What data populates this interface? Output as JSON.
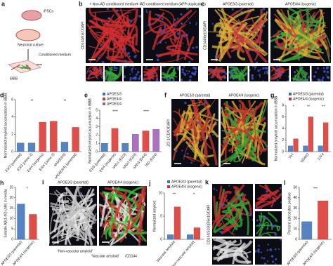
{
  "panels": {
    "a": {
      "label": "a",
      "texts": [
        "iPSCs",
        "Neuronal culture",
        "Conditioned medium",
        "iBBB"
      ]
    },
    "b": {
      "label": "b",
      "images": [
        "+ Non-AD conditioned medium",
        "+ fAD conditioned medium (APP duplication)"
      ],
      "stain": "CD144/Ki67/DAPI"
    },
    "c": {
      "label": "c",
      "images": [
        "APOE3/3 (parental)",
        "APOE4/4 (isogenic)"
      ],
      "stain": "CD144/6e10/DAPI"
    },
    "d": {
      "label": "d",
      "type": "bar",
      "ylabel": "Normalized amyloid accumulation in iBBB",
      "categories": [
        "E3/3 (parental)",
        "E3/3 (clone 2)",
        "E4/4 (isogenic)",
        "E4/4 (clone 2)",
        "sAD(E3/4)",
        "sAD(E4/4) (parental)"
      ],
      "values": [
        1,
        1,
        3.4,
        3.5,
        1.1,
        2.8
      ],
      "colors": [
        "#3a6fb5",
        "#3a6fb5",
        "#d7302a",
        "#d7302a",
        "#3a6fb5",
        "#d7302a"
      ],
      "ylim": [
        0,
        6
      ],
      "yticks": [
        0,
        2,
        4,
        6
      ],
      "significance": [
        "**",
        "**"
      ]
    },
    "e": {
      "label": "e",
      "type": "bar",
      "ylabel": "Normalized amyloid accumulation in iBBB",
      "categories": [
        "E3/3 (parental)",
        "E4/4 (isogenic)",
        "sAD1 (E3/3)",
        "sAD2 (E3/4)",
        "sAD3 (E4/4)",
        "fAD (E3/4)"
      ],
      "values": [
        1,
        2.8,
        1,
        2.1,
        2.5,
        2.7
      ],
      "colors": [
        "#3a6fb5",
        "#d7302a",
        "#3a6fb5",
        "#9b59b6",
        "#d7302a",
        "#9b59b6"
      ],
      "legend": [
        {
          "name": "APOE3/3",
          "color": "#3a6fb5"
        },
        {
          "name": "APOE4/4",
          "color": "#d7302a"
        },
        {
          "name": "APOE3/4",
          "color": "#9b59b6"
        }
      ],
      "ylim": [
        0,
        5
      ],
      "yticks": [
        0,
        1,
        2,
        3,
        4,
        5
      ],
      "significance": [
        "****",
        "****"
      ]
    },
    "f": {
      "label": "f",
      "images": [
        "APOE3/3 (parental)",
        "APOE4/4 (isogenic)"
      ],
      "stain": "ZO-1/CD40/DAPI"
    },
    "g": {
      "label": "g",
      "type": "bar",
      "ylabel": "Normalized amyloid accumulation in iBBB",
      "categories": [
        "ThT",
        "D54D2",
        "12F4"
      ],
      "series": [
        {
          "name": "APOE3/3 (parental)",
          "color": "#3a6fb5",
          "values": [
            1,
            1,
            1
          ]
        },
        {
          "name": "APOE4/4 (isogenic)",
          "color": "#d7302a",
          "values": [
            2.2,
            6,
            5
          ]
        }
      ],
      "ylim": [
        0,
        8
      ],
      "yticks": [
        0,
        2,
        4,
        6,
        8
      ],
      "significance": [
        "*",
        "**",
        "**"
      ]
    },
    "h": {
      "label": "h",
      "type": "bar",
      "ylabel": "Soluble Aβ(1-40) (nM) in media",
      "categories": [
        "APOE3/3 (parental)",
        "APOE4/4 (isogenic)"
      ],
      "values": [
        17,
        12
      ],
      "colors": [
        "#3a6fb5",
        "#d7302a"
      ],
      "ylim": [
        0,
        25
      ],
      "yticks": [
        0,
        5,
        10,
        15,
        20,
        25
      ],
      "significance": [
        "*"
      ]
    },
    "i": {
      "label": "i",
      "images": [
        "APOE3/3 (parental)",
        "APOE4/4 (isogenic)"
      ],
      "legend": [
        "'Non-vascular amyloid'",
        "'Vascular amyloid'",
        "/CD144"
      ]
    },
    "j": {
      "label": "j",
      "type": "bar",
      "ylabel": "Normalized amyloid",
      "categories": [
        "Vascular amyloid",
        "Non-vascular amyloid"
      ],
      "series": [
        {
          "name": "APOE3/3 (parental)",
          "color": "#3a6fb5",
          "values": [
            1,
            1
          ]
        },
        {
          "name": "APOE4/4 (isogenic)",
          "color": "#d7302a",
          "values": [
            7,
            2.5
          ]
        }
      ],
      "ylim": [
        0,
        10
      ],
      "yticks": [
        0,
        5,
        10
      ],
      "significance": [
        "**",
        "*"
      ]
    },
    "k": {
      "label": "k",
      "stain": "CD144/S100β/6e10/DAPI"
    },
    "l": {
      "label": "l",
      "type": "bar",
      "ylabel": "Percent astrocytes positive",
      "categories": [
        "APOE3/3 (parental)",
        "APOE4/4 (isogenic)"
      ],
      "values": [
        17,
        37
      ],
      "colors": [
        "#3a6fb5",
        "#d7302a"
      ],
      "ylim": [
        0,
        50
      ],
      "yticks": [
        0,
        10,
        20,
        30,
        40,
        50
      ],
      "significance": [
        "***"
      ]
    }
  }
}
